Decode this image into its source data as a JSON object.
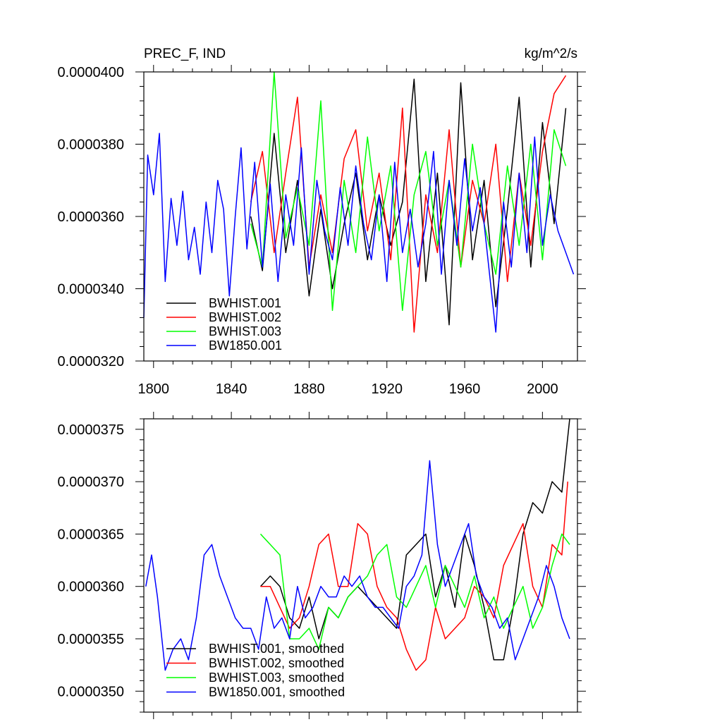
{
  "chart_data": [
    {
      "type": "line",
      "title_left": "PREC_F, IND",
      "title_right": "kg/m^2/s",
      "xlim": [
        1795,
        2018
      ],
      "ylim": [
        3.2e-05,
        4e-05
      ],
      "xticks": [
        1800,
        1840,
        1880,
        1920,
        1960,
        2000
      ],
      "xtick_labels": [
        "1800",
        "1840",
        "1880",
        "1920",
        "1960",
        "2000"
      ],
      "yticks": [
        3.2e-05,
        3.4e-05,
        3.6e-05,
        3.8e-05,
        4e-05
      ],
      "ytick_labels": [
        "0.0000320",
        "0.0000340",
        "0.0000360",
        "0.0000380",
        "0.0000400"
      ],
      "legend_position": "bottom-left",
      "series": [
        {
          "name": "BWHIST.001",
          "color": "#000000",
          "x": [
            1850,
            1856,
            1862,
            1868,
            1874,
            1880,
            1886,
            1892,
            1898,
            1904,
            1910,
            1916,
            1922,
            1928,
            1934,
            1940,
            1946,
            1952,
            1958,
            1964,
            1970,
            1976,
            1982,
            1988,
            1994,
            2000,
            2006,
            2012
          ],
          "y": [
            3.6e-05,
            3.45e-05,
            3.83e-05,
            3.5e-05,
            3.7e-05,
            3.38e-05,
            3.62e-05,
            3.4e-05,
            3.58e-05,
            3.72e-05,
            3.48e-05,
            3.66e-05,
            3.52e-05,
            3.64e-05,
            3.98e-05,
            3.42e-05,
            3.72e-05,
            3.3e-05,
            3.97e-05,
            3.48e-05,
            3.7e-05,
            3.35e-05,
            3.62e-05,
            3.93e-05,
            3.46e-05,
            3.86e-05,
            3.58e-05,
            3.9e-05
          ]
        },
        {
          "name": "BWHIST.002",
          "color": "#ff0000",
          "x": [
            1850,
            1856,
            1862,
            1868,
            1874,
            1880,
            1886,
            1892,
            1898,
            1904,
            1910,
            1916,
            1922,
            1928,
            1934,
            1940,
            1946,
            1952,
            1958,
            1964,
            1970,
            1976,
            1982,
            1988,
            1994,
            2000,
            2006,
            2012
          ],
          "y": [
            3.64e-05,
            3.78e-05,
            3.5e-05,
            3.72e-05,
            3.93e-05,
            3.46e-05,
            3.66e-05,
            3.5e-05,
            3.76e-05,
            3.84e-05,
            3.56e-05,
            3.72e-05,
            3.48e-05,
            3.9e-05,
            3.28e-05,
            3.66e-05,
            3.5e-05,
            3.84e-05,
            3.46e-05,
            3.7e-05,
            3.58e-05,
            3.8e-05,
            3.42e-05,
            3.72e-05,
            3.52e-05,
            3.78e-05,
            3.94e-05,
            3.99e-05
          ]
        },
        {
          "name": "BWHIST.003",
          "color": "#00ff00",
          "x": [
            1850,
            1856,
            1862,
            1868,
            1874,
            1880,
            1886,
            1892,
            1898,
            1904,
            1910,
            1916,
            1922,
            1928,
            1934,
            1940,
            1946,
            1952,
            1958,
            1964,
            1970,
            1976,
            1982,
            1988,
            1994,
            2000,
            2006,
            2012
          ],
          "y": [
            3.58e-05,
            3.46e-05,
            4e-05,
            3.54e-05,
            3.68e-05,
            3.52e-05,
            3.92e-05,
            3.34e-05,
            3.7e-05,
            3.5e-05,
            3.82e-05,
            3.56e-05,
            3.74e-05,
            3.34e-05,
            3.66e-05,
            3.78e-05,
            3.52e-05,
            3.7e-05,
            3.46e-05,
            3.8e-05,
            3.58e-05,
            3.44e-05,
            3.74e-05,
            3.52e-05,
            3.8e-05,
            3.48e-05,
            3.84e-05,
            3.74e-05
          ]
        },
        {
          "name": "BW1850.001",
          "color": "#0000ff",
          "x": [
            1795,
            1797,
            1800,
            1803,
            1806,
            1809,
            1812,
            1815,
            1818,
            1821,
            1824,
            1827,
            1830,
            1833,
            1836,
            1839,
            1842,
            1845,
            1848,
            1852,
            1856,
            1860,
            1864,
            1868,
            1872,
            1876,
            1880,
            1884,
            1888,
            1892,
            1896,
            1900,
            1904,
            1908,
            1912,
            1916,
            1920,
            1924,
            1928,
            1932,
            1936,
            1940,
            1944,
            1948,
            1952,
            1956,
            1960,
            1964,
            1968,
            1972,
            1976,
            1980,
            1984,
            1988,
            1992,
            1996,
            2000,
            2004,
            2008,
            2012,
            2016
          ],
          "y": [
            3.32e-05,
            3.77e-05,
            3.66e-05,
            3.83e-05,
            3.42e-05,
            3.65e-05,
            3.52e-05,
            3.67e-05,
            3.48e-05,
            3.57e-05,
            3.44e-05,
            3.64e-05,
            3.5e-05,
            3.7e-05,
            3.62e-05,
            3.38e-05,
            3.6e-05,
            3.79e-05,
            3.51e-05,
            3.75e-05,
            3.46e-05,
            3.69e-05,
            3.42e-05,
            3.66e-05,
            3.52e-05,
            3.79e-05,
            3.44e-05,
            3.7e-05,
            3.56e-05,
            3.48e-05,
            3.68e-05,
            3.52e-05,
            3.74e-05,
            3.58e-05,
            3.48e-05,
            3.66e-05,
            3.42e-05,
            3.75e-05,
            3.5e-05,
            3.62e-05,
            3.46e-05,
            3.58e-05,
            3.78e-05,
            3.44e-05,
            3.7e-05,
            3.52e-05,
            3.76e-05,
            3.56e-05,
            3.68e-05,
            3.48e-05,
            3.28e-05,
            3.64e-05,
            3.46e-05,
            3.72e-05,
            3.5e-05,
            3.82e-05,
            3.52e-05,
            3.66e-05,
            3.56e-05,
            3.5e-05,
            3.44e-05
          ]
        }
      ]
    },
    {
      "type": "line",
      "xlim": [
        1795,
        2018
      ],
      "ylim": [
        3.48e-05,
        3.76e-05
      ],
      "xticks": [
        1800,
        1840,
        1880,
        1920,
        1960,
        2000
      ],
      "yticks": [
        3.5e-05,
        3.55e-05,
        3.6e-05,
        3.65e-05,
        3.7e-05,
        3.75e-05
      ],
      "ytick_labels": [
        "0.0000350",
        "0.0000355",
        "0.0000360",
        "0.0000365",
        "0.0000370",
        "0.0000375"
      ],
      "legend_position": "bottom-left",
      "series": [
        {
          "name": "BWHIST.001, smoothed",
          "color": "#000000",
          "x": [
            1855,
            1860,
            1865,
            1870,
            1875,
            1880,
            1885,
            1890,
            1895,
            1900,
            1905,
            1910,
            1915,
            1920,
            1925,
            1930,
            1935,
            1940,
            1945,
            1950,
            1955,
            1960,
            1965,
            1970,
            1975,
            1980,
            1985,
            1990,
            1995,
            2000,
            2005,
            2010,
            2014
          ],
          "y": [
            3.6e-05,
            3.61e-05,
            3.6e-05,
            3.57e-05,
            3.56e-05,
            3.59e-05,
            3.55e-05,
            3.58e-05,
            3.57e-05,
            3.59e-05,
            3.6e-05,
            3.59e-05,
            3.58e-05,
            3.57e-05,
            3.56e-05,
            3.63e-05,
            3.64e-05,
            3.65e-05,
            3.59e-05,
            3.62e-05,
            3.58e-05,
            3.65e-05,
            3.62e-05,
            3.58e-05,
            3.53e-05,
            3.53e-05,
            3.58e-05,
            3.65e-05,
            3.68e-05,
            3.67e-05,
            3.7e-05,
            3.69e-05,
            3.76e-05
          ]
        },
        {
          "name": "BWHIST.002, smoothed",
          "color": "#ff0000",
          "x": [
            1855,
            1860,
            1865,
            1870,
            1875,
            1880,
            1885,
            1890,
            1895,
            1900,
            1905,
            1910,
            1915,
            1920,
            1925,
            1930,
            1935,
            1940,
            1945,
            1950,
            1955,
            1960,
            1965,
            1970,
            1975,
            1980,
            1985,
            1990,
            1995,
            2000,
            2005,
            2010,
            2013
          ],
          "y": [
            3.6e-05,
            3.6e-05,
            3.58e-05,
            3.56e-05,
            3.57e-05,
            3.6e-05,
            3.64e-05,
            3.65e-05,
            3.6e-05,
            3.6e-05,
            3.66e-05,
            3.65e-05,
            3.6e-05,
            3.58e-05,
            3.57e-05,
            3.54e-05,
            3.52e-05,
            3.53e-05,
            3.58e-05,
            3.55e-05,
            3.56e-05,
            3.57e-05,
            3.6e-05,
            3.59e-05,
            3.57e-05,
            3.62e-05,
            3.64e-05,
            3.66e-05,
            3.6e-05,
            3.58e-05,
            3.64e-05,
            3.63e-05,
            3.7e-05
          ]
        },
        {
          "name": "BWHIST.003, smoothed",
          "color": "#00ff00",
          "x": [
            1855,
            1860,
            1865,
            1870,
            1875,
            1880,
            1885,
            1890,
            1895,
            1900,
            1905,
            1910,
            1915,
            1920,
            1925,
            1930,
            1935,
            1940,
            1945,
            1950,
            1955,
            1960,
            1965,
            1970,
            1975,
            1980,
            1985,
            1990,
            1995,
            2000,
            2005,
            2010,
            2014
          ],
          "y": [
            3.65e-05,
            3.64e-05,
            3.63e-05,
            3.55e-05,
            3.55e-05,
            3.56e-05,
            3.54e-05,
            3.58e-05,
            3.57e-05,
            3.59e-05,
            3.6e-05,
            3.61e-05,
            3.63e-05,
            3.64e-05,
            3.59e-05,
            3.58e-05,
            3.6e-05,
            3.62e-05,
            3.58e-05,
            3.62e-05,
            3.6e-05,
            3.58e-05,
            3.61e-05,
            3.57e-05,
            3.59e-05,
            3.56e-05,
            3.58e-05,
            3.6e-05,
            3.56e-05,
            3.58e-05,
            3.62e-05,
            3.65e-05,
            3.64e-05
          ]
        },
        {
          "name": "BW1850.001, smoothed",
          "color": "#0000ff",
          "x": [
            1796,
            1799,
            1802,
            1806,
            1810,
            1814,
            1818,
            1822,
            1826,
            1830,
            1834,
            1838,
            1842,
            1846,
            1850,
            1854,
            1858,
            1862,
            1866,
            1870,
            1874,
            1878,
            1882,
            1886,
            1890,
            1894,
            1898,
            1902,
            1906,
            1910,
            1914,
            1918,
            1922,
            1926,
            1930,
            1934,
            1938,
            1942,
            1946,
            1950,
            1954,
            1958,
            1962,
            1966,
            1970,
            1974,
            1978,
            1982,
            1986,
            1990,
            1994,
            1998,
            2002,
            2006,
            2010,
            2014
          ],
          "y": [
            3.6e-05,
            3.63e-05,
            3.59e-05,
            3.52e-05,
            3.54e-05,
            3.55e-05,
            3.53e-05,
            3.57e-05,
            3.63e-05,
            3.64e-05,
            3.61e-05,
            3.59e-05,
            3.57e-05,
            3.56e-05,
            3.56e-05,
            3.54e-05,
            3.59e-05,
            3.56e-05,
            3.57e-05,
            3.55e-05,
            3.6e-05,
            3.57e-05,
            3.58e-05,
            3.6e-05,
            3.59e-05,
            3.59e-05,
            3.61e-05,
            3.6e-05,
            3.61e-05,
            3.59e-05,
            3.58e-05,
            3.58e-05,
            3.57e-05,
            3.56e-05,
            3.6e-05,
            3.61e-05,
            3.63e-05,
            3.72e-05,
            3.64e-05,
            3.6e-05,
            3.62e-05,
            3.64e-05,
            3.66e-05,
            3.61e-05,
            3.59e-05,
            3.58e-05,
            3.56e-05,
            3.57e-05,
            3.53e-05,
            3.55e-05,
            3.57e-05,
            3.59e-05,
            3.62e-05,
            3.6e-05,
            3.57e-05,
            3.55e-05
          ]
        }
      ]
    }
  ]
}
